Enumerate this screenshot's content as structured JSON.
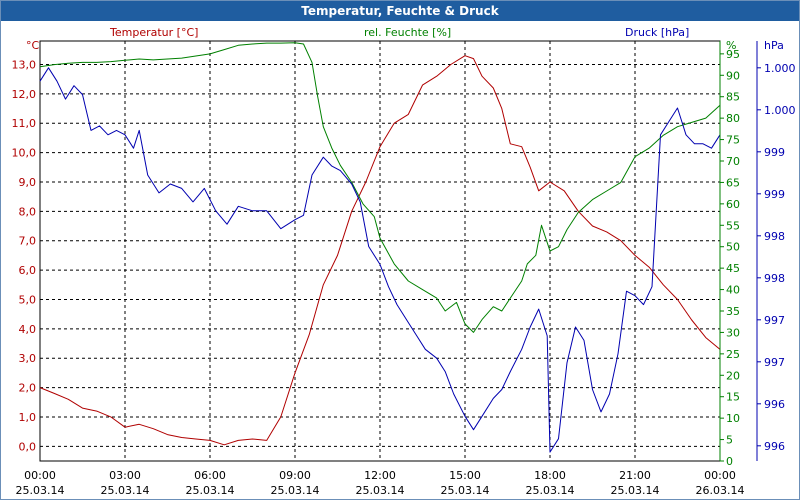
{
  "window": {
    "title": "Temperatur, Feuchte & Druck"
  },
  "colors": {
    "temperature": "#b00000",
    "humidity": "#008000",
    "pressure": "#0000b0",
    "grid": "#000000"
  },
  "chart_data": {
    "type": "line",
    "title": "Temperatur, Feuchte & Druck",
    "grid": true,
    "x_ticks": [
      {
        "time": "00:00",
        "date": "25.03.14"
      },
      {
        "time": "03:00",
        "date": "25.03.14"
      },
      {
        "time": "06:00",
        "date": "25.03.14"
      },
      {
        "time": "09:00",
        "date": "25.03.14"
      },
      {
        "time": "12:00",
        "date": "25.03.14"
      },
      {
        "time": "15:00",
        "date": "25.03.14"
      },
      {
        "time": "18:00",
        "date": "25.03.14"
      },
      {
        "time": "21:00",
        "date": "25.03.14"
      },
      {
        "time": "00:00",
        "date": "26.03.14"
      }
    ],
    "x_range_hours": [
      0,
      24
    ],
    "axes": {
      "temperature": {
        "label": "Temperatur [°C]",
        "unit": "°C",
        "range": [
          -0.5,
          13.8
        ],
        "ticks": [
          "0,0",
          "1,0",
          "2,0",
          "3,0",
          "4,0",
          "5,0",
          "6,0",
          "7,0",
          "8,0",
          "9,0",
          "10,0",
          "11,0",
          "12,0",
          "13,0"
        ]
      },
      "humidity": {
        "label": "rel. Feuchte [%]",
        "unit": "%",
        "range": [
          0,
          98
        ],
        "ticks": [
          "0",
          "5",
          "10",
          "15",
          "20",
          "25",
          "30",
          "35",
          "40",
          "45",
          "50",
          "55",
          "60",
          "65",
          "70",
          "75",
          "80",
          "85",
          "90",
          "95"
        ]
      },
      "pressure": {
        "label": "Druck [hPa]",
        "unit": "hPa",
        "range": [
          995.8,
          1000.5
        ],
        "ticks": [
          {
            "value": 995.97,
            "label": "996"
          },
          {
            "value": 996.44,
            "label": "996"
          },
          {
            "value": 996.91,
            "label": "997"
          },
          {
            "value": 997.38,
            "label": "997"
          },
          {
            "value": 997.85,
            "label": "998"
          },
          {
            "value": 998.32,
            "label": "998"
          },
          {
            "value": 998.79,
            "label": "999"
          },
          {
            "value": 999.26,
            "label": "999"
          },
          {
            "value": 999.73,
            "label": "1.000"
          },
          {
            "value": 1000.2,
            "label": "1.000"
          }
        ]
      }
    },
    "series": [
      {
        "name": "Temperatur [°C]",
        "axis": "temperature",
        "points": [
          [
            0,
            2
          ],
          [
            0.5,
            1.8
          ],
          [
            1,
            1.6
          ],
          [
            1.5,
            1.3
          ],
          [
            2,
            1.2
          ],
          [
            2.5,
            1.0
          ],
          [
            3,
            0.65
          ],
          [
            3.5,
            0.75
          ],
          [
            4,
            0.6
          ],
          [
            4.5,
            0.4
          ],
          [
            5,
            0.3
          ],
          [
            5.5,
            0.25
          ],
          [
            6,
            0.2
          ],
          [
            6.5,
            0.05
          ],
          [
            7,
            0.2
          ],
          [
            7.5,
            0.25
          ],
          [
            8,
            0.2
          ],
          [
            8.5,
            1.0
          ],
          [
            9,
            2.5
          ],
          [
            9.5,
            3.8
          ],
          [
            10,
            5.5
          ],
          [
            10.5,
            6.5
          ],
          [
            11,
            8.0
          ],
          [
            11.5,
            9.0
          ],
          [
            12,
            10.2
          ],
          [
            12.5,
            11.0
          ],
          [
            13,
            11.3
          ],
          [
            13.5,
            12.3
          ],
          [
            14,
            12.6
          ],
          [
            14.5,
            13.0
          ],
          [
            15,
            13.3
          ],
          [
            15.3,
            13.2
          ],
          [
            15.6,
            12.6
          ],
          [
            16,
            12.2
          ],
          [
            16.3,
            11.5
          ],
          [
            16.6,
            10.3
          ],
          [
            17,
            10.2
          ],
          [
            17.3,
            9.5
          ],
          [
            17.6,
            8.7
          ],
          [
            18,
            9.0
          ],
          [
            18.5,
            8.7
          ],
          [
            19,
            8.0
          ],
          [
            19.5,
            7.5
          ],
          [
            20,
            7.3
          ],
          [
            20.5,
            7.0
          ],
          [
            21,
            6.5
          ],
          [
            21.5,
            6.1
          ],
          [
            22,
            5.5
          ],
          [
            22.5,
            5.0
          ],
          [
            23,
            4.3
          ],
          [
            23.5,
            3.7
          ],
          [
            24,
            3.3
          ]
        ]
      },
      {
        "name": "rel. Feuchte [%]",
        "axis": "humidity",
        "points": [
          [
            0,
            92
          ],
          [
            0.5,
            92.5
          ],
          [
            1,
            92.8
          ],
          [
            1.5,
            93
          ],
          [
            2,
            93
          ],
          [
            2.5,
            93.2
          ],
          [
            3,
            93.5
          ],
          [
            3.5,
            93.8
          ],
          [
            4,
            93.6
          ],
          [
            4.5,
            93.8
          ],
          [
            5,
            94
          ],
          [
            5.5,
            94.5
          ],
          [
            6,
            95
          ],
          [
            6.5,
            96
          ],
          [
            7,
            97
          ],
          [
            7.5,
            97.3
          ],
          [
            8,
            97.5
          ],
          [
            8.5,
            97.5
          ],
          [
            9,
            97.6
          ],
          [
            9.3,
            97.3
          ],
          [
            9.6,
            93
          ],
          [
            9.8,
            85
          ],
          [
            10,
            78
          ],
          [
            10.3,
            73
          ],
          [
            10.6,
            69
          ],
          [
            11,
            65
          ],
          [
            11.4,
            60
          ],
          [
            11.8,
            57
          ],
          [
            12,
            52
          ],
          [
            12.5,
            46
          ],
          [
            13,
            42
          ],
          [
            13.5,
            40
          ],
          [
            14,
            38
          ],
          [
            14.3,
            35
          ],
          [
            14.7,
            37
          ],
          [
            15,
            32
          ],
          [
            15.3,
            30
          ],
          [
            15.6,
            33
          ],
          [
            16,
            36
          ],
          [
            16.3,
            35
          ],
          [
            16.6,
            38
          ],
          [
            17,
            42
          ],
          [
            17.2,
            46
          ],
          [
            17.5,
            48
          ],
          [
            17.7,
            55
          ],
          [
            18,
            49
          ],
          [
            18.3,
            50
          ],
          [
            18.6,
            54
          ],
          [
            19,
            58
          ],
          [
            19.5,
            61
          ],
          [
            20,
            63
          ],
          [
            20.5,
            65
          ],
          [
            21,
            71
          ],
          [
            21.5,
            73
          ],
          [
            22,
            76
          ],
          [
            22.5,
            78
          ],
          [
            23,
            79
          ],
          [
            23.5,
            80
          ],
          [
            24,
            83
          ]
        ]
      },
      {
        "name": "Druck [hPa]",
        "axis": "pressure",
        "points": [
          [
            0,
            1000.05
          ],
          [
            0.3,
            1000.2
          ],
          [
            0.6,
            1000.05
          ],
          [
            0.9,
            999.85
          ],
          [
            1.2,
            1000.0
          ],
          [
            1.5,
            999.9
          ],
          [
            1.8,
            999.5
          ],
          [
            2.1,
            999.55
          ],
          [
            2.4,
            999.45
          ],
          [
            2.7,
            999.5
          ],
          [
            3,
            999.45
          ],
          [
            3.3,
            999.3
          ],
          [
            3.5,
            999.5
          ],
          [
            3.8,
            999.0
          ],
          [
            4.2,
            998.8
          ],
          [
            4.6,
            998.9
          ],
          [
            5,
            998.85
          ],
          [
            5.4,
            998.7
          ],
          [
            5.8,
            998.85
          ],
          [
            6.2,
            998.6
          ],
          [
            6.6,
            998.45
          ],
          [
            7,
            998.65
          ],
          [
            7.5,
            998.6
          ],
          [
            8,
            998.6
          ],
          [
            8.5,
            998.4
          ],
          [
            9,
            998.5
          ],
          [
            9.3,
            998.55
          ],
          [
            9.6,
            999.0
          ],
          [
            10,
            999.2
          ],
          [
            10.3,
            999.1
          ],
          [
            10.6,
            999.05
          ],
          [
            11,
            998.9
          ],
          [
            11.3,
            998.7
          ],
          [
            11.6,
            998.2
          ],
          [
            12,
            998.0
          ],
          [
            12.3,
            997.75
          ],
          [
            12.6,
            997.55
          ],
          [
            13,
            997.35
          ],
          [
            13.3,
            997.2
          ],
          [
            13.6,
            997.05
          ],
          [
            14,
            996.95
          ],
          [
            14.3,
            996.8
          ],
          [
            14.6,
            996.55
          ],
          [
            15,
            996.3
          ],
          [
            15.3,
            996.15
          ],
          [
            15.6,
            996.3
          ],
          [
            16,
            996.5
          ],
          [
            16.3,
            996.6
          ],
          [
            16.6,
            996.8
          ],
          [
            17,
            997.05
          ],
          [
            17.3,
            997.3
          ],
          [
            17.6,
            997.5
          ],
          [
            17.9,
            997.2
          ],
          [
            18,
            995.9
          ],
          [
            18.3,
            996.05
          ],
          [
            18.6,
            996.9
          ],
          [
            18.9,
            997.3
          ],
          [
            19.2,
            997.15
          ],
          [
            19.5,
            996.6
          ],
          [
            19.8,
            996.35
          ],
          [
            20.1,
            996.55
          ],
          [
            20.4,
            997.0
          ],
          [
            20.7,
            997.7
          ],
          [
            21,
            997.65
          ],
          [
            21.3,
            997.55
          ],
          [
            21.6,
            997.75
          ],
          [
            21.9,
            999.45
          ],
          [
            22.2,
            999.6
          ],
          [
            22.5,
            999.75
          ],
          [
            22.8,
            999.45
          ],
          [
            23.1,
            999.35
          ],
          [
            23.4,
            999.35
          ],
          [
            23.7,
            999.3
          ],
          [
            24,
            999.45
          ]
        ]
      }
    ]
  }
}
